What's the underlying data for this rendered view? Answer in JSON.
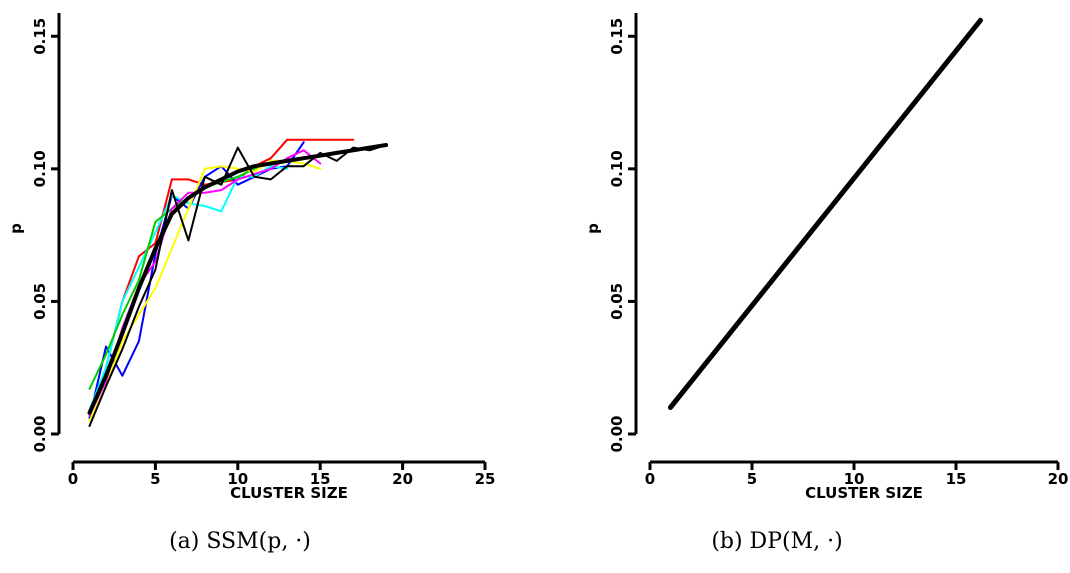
{
  "chart_data": [
    {
      "type": "line",
      "title": "",
      "xlabel": "CLUSTER SIZE",
      "ylabel": "p",
      "xlim": [
        0,
        25
      ],
      "ylim": [
        0.0,
        0.155
      ],
      "xticks": [
        "0",
        "5",
        "10",
        "15",
        "20",
        "25"
      ],
      "yticks": [
        "0.00",
        "0.05",
        "0.10",
        "0.15"
      ],
      "caption": "(a) SSM(p, ·)",
      "grid": false,
      "legend": "none",
      "series": [
        {
          "color": "#ff0000",
          "x": [
            1,
            2,
            3,
            4,
            5,
            6,
            7,
            8,
            9,
            10,
            11,
            12,
            13,
            14,
            15,
            16,
            17
          ],
          "y": [
            0.008,
            0.025,
            0.05,
            0.067,
            0.072,
            0.096,
            0.096,
            0.094,
            0.095,
            0.096,
            0.101,
            0.104,
            0.111,
            0.111,
            0.111,
            0.111,
            0.111
          ]
        },
        {
          "color": "#0000ff",
          "x": [
            1,
            2,
            3,
            4,
            5,
            6,
            7,
            8,
            9,
            10,
            11,
            12,
            13,
            14
          ],
          "y": [
            0.006,
            0.033,
            0.022,
            0.035,
            0.068,
            0.09,
            0.085,
            0.097,
            0.101,
            0.094,
            0.097,
            0.1,
            0.101,
            0.11
          ]
        },
        {
          "color": "#00ffff",
          "x": [
            1,
            2,
            3,
            4,
            5,
            6,
            7,
            8,
            9,
            10,
            11,
            12,
            13
          ],
          "y": [
            0.009,
            0.025,
            0.05,
            0.063,
            0.076,
            0.09,
            0.087,
            0.086,
            0.084,
            0.097,
            0.097,
            0.101,
            0.1
          ]
        },
        {
          "color": "#00cc00",
          "x": [
            1,
            2,
            3,
            4,
            5,
            6,
            7,
            8,
            9,
            10,
            11,
            12
          ],
          "y": [
            0.017,
            0.03,
            0.045,
            0.058,
            0.08,
            0.085,
            0.089,
            0.093,
            0.095,
            0.097,
            0.1,
            0.102
          ]
        },
        {
          "color": "#ffff00",
          "x": [
            1,
            2,
            3,
            4,
            5,
            6,
            7,
            8,
            9,
            10,
            11,
            12,
            13,
            14,
            15
          ],
          "y": [
            0.005,
            0.018,
            0.035,
            0.045,
            0.055,
            0.07,
            0.085,
            0.1,
            0.101,
            0.1,
            0.099,
            0.103,
            0.103,
            0.102,
            0.1
          ]
        },
        {
          "color": "#ff00ff",
          "x": [
            1,
            2,
            3,
            4,
            5,
            6,
            7,
            8,
            9,
            10,
            11,
            12,
            13,
            14,
            15
          ],
          "y": [
            0.007,
            0.02,
            0.04,
            0.056,
            0.065,
            0.085,
            0.091,
            0.091,
            0.092,
            0.096,
            0.098,
            0.1,
            0.104,
            0.107,
            0.102
          ]
        },
        {
          "color": "#000000",
          "x": [
            1,
            2,
            3,
            4,
            5,
            6,
            7,
            8,
            9,
            10,
            11,
            12,
            13,
            14,
            15,
            16,
            17,
            18,
            19
          ],
          "y": [
            0.003,
            0.018,
            0.032,
            0.048,
            0.062,
            0.092,
            0.073,
            0.097,
            0.094,
            0.108,
            0.097,
            0.096,
            0.101,
            0.101,
            0.106,
            0.103,
            0.108,
            0.107,
            0.109
          ]
        },
        {
          "color": "#000000",
          "width": 4,
          "x": [
            1,
            2,
            3,
            4,
            5,
            6,
            7,
            8,
            9,
            10,
            11,
            12,
            13,
            14,
            15,
            16,
            17,
            18,
            19
          ],
          "y": [
            0.008,
            0.022,
            0.038,
            0.055,
            0.07,
            0.083,
            0.089,
            0.093,
            0.096,
            0.099,
            0.101,
            0.102,
            0.103,
            0.104,
            0.105,
            0.106,
            0.107,
            0.108,
            0.109
          ]
        }
      ]
    },
    {
      "type": "line",
      "title": "",
      "xlabel": "CLUSTER SIZE",
      "ylabel": "p",
      "xlim": [
        0,
        20
      ],
      "ylim": [
        0.0,
        0.155
      ],
      "xticks": [
        "0",
        "5",
        "10",
        "15",
        "20"
      ],
      "yticks": [
        "0.00",
        "0.05",
        "0.10",
        "0.15"
      ],
      "caption": "(b) DP(M, ·)",
      "grid": false,
      "legend": "none",
      "series": [
        {
          "color": "#000000",
          "width": 5,
          "x": [
            1,
            16.2
          ],
          "y": [
            0.01,
            0.156
          ]
        }
      ]
    }
  ]
}
